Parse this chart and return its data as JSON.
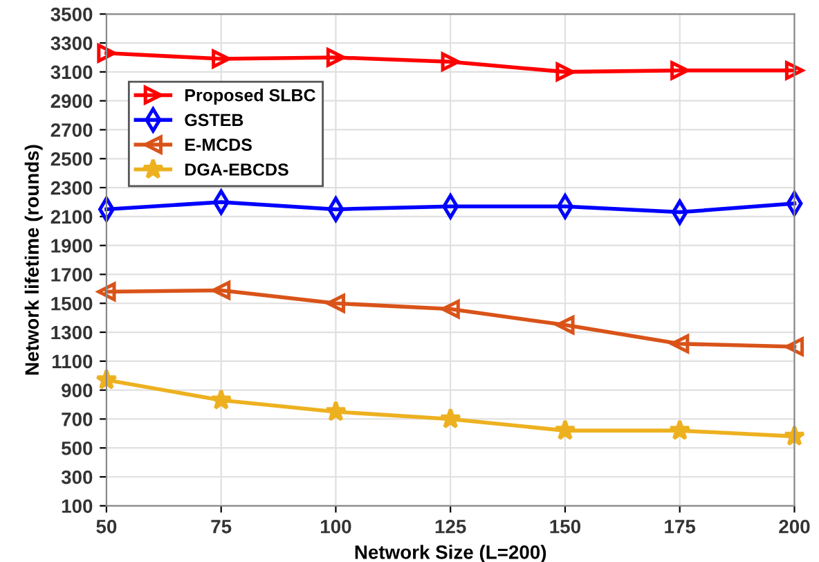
{
  "chart_data": {
    "type": "line",
    "xlabel": "Network Size (L=200)",
    "ylabel": "Network lifetime (rounds)",
    "x": [
      50,
      75,
      100,
      125,
      150,
      175,
      200
    ],
    "series": [
      {
        "name": "Proposed SLBC",
        "color": "#ff0000",
        "marker": "triangle_right",
        "values": [
          3230,
          3190,
          3200,
          3170,
          3100,
          3110,
          3110
        ]
      },
      {
        "name": "GSTEB",
        "color": "#0000ff",
        "marker": "diamond",
        "values": [
          2150,
          2200,
          2150,
          2170,
          2170,
          2130,
          2190
        ]
      },
      {
        "name": "E-MCDS",
        "color": "#d95319",
        "marker": "triangle_left",
        "values": [
          1580,
          1590,
          1500,
          1460,
          1350,
          1220,
          1200
        ]
      },
      {
        "name": "DGA-EBCDS",
        "color": "#edb120",
        "marker": "star",
        "values": [
          970,
          830,
          750,
          700,
          620,
          620,
          580
        ]
      }
    ],
    "xlim": [
      50,
      200
    ],
    "xticks": [
      50,
      75,
      100,
      125,
      150,
      175,
      200
    ],
    "ylim": [
      100,
      3500
    ],
    "yticks": [
      100,
      300,
      500,
      700,
      900,
      1100,
      1300,
      1500,
      1700,
      1900,
      2100,
      2300,
      2500,
      2700,
      2900,
      3100,
      3300,
      3500
    ],
    "grid": true,
    "legend": "top left",
    "line_style": "solid"
  }
}
